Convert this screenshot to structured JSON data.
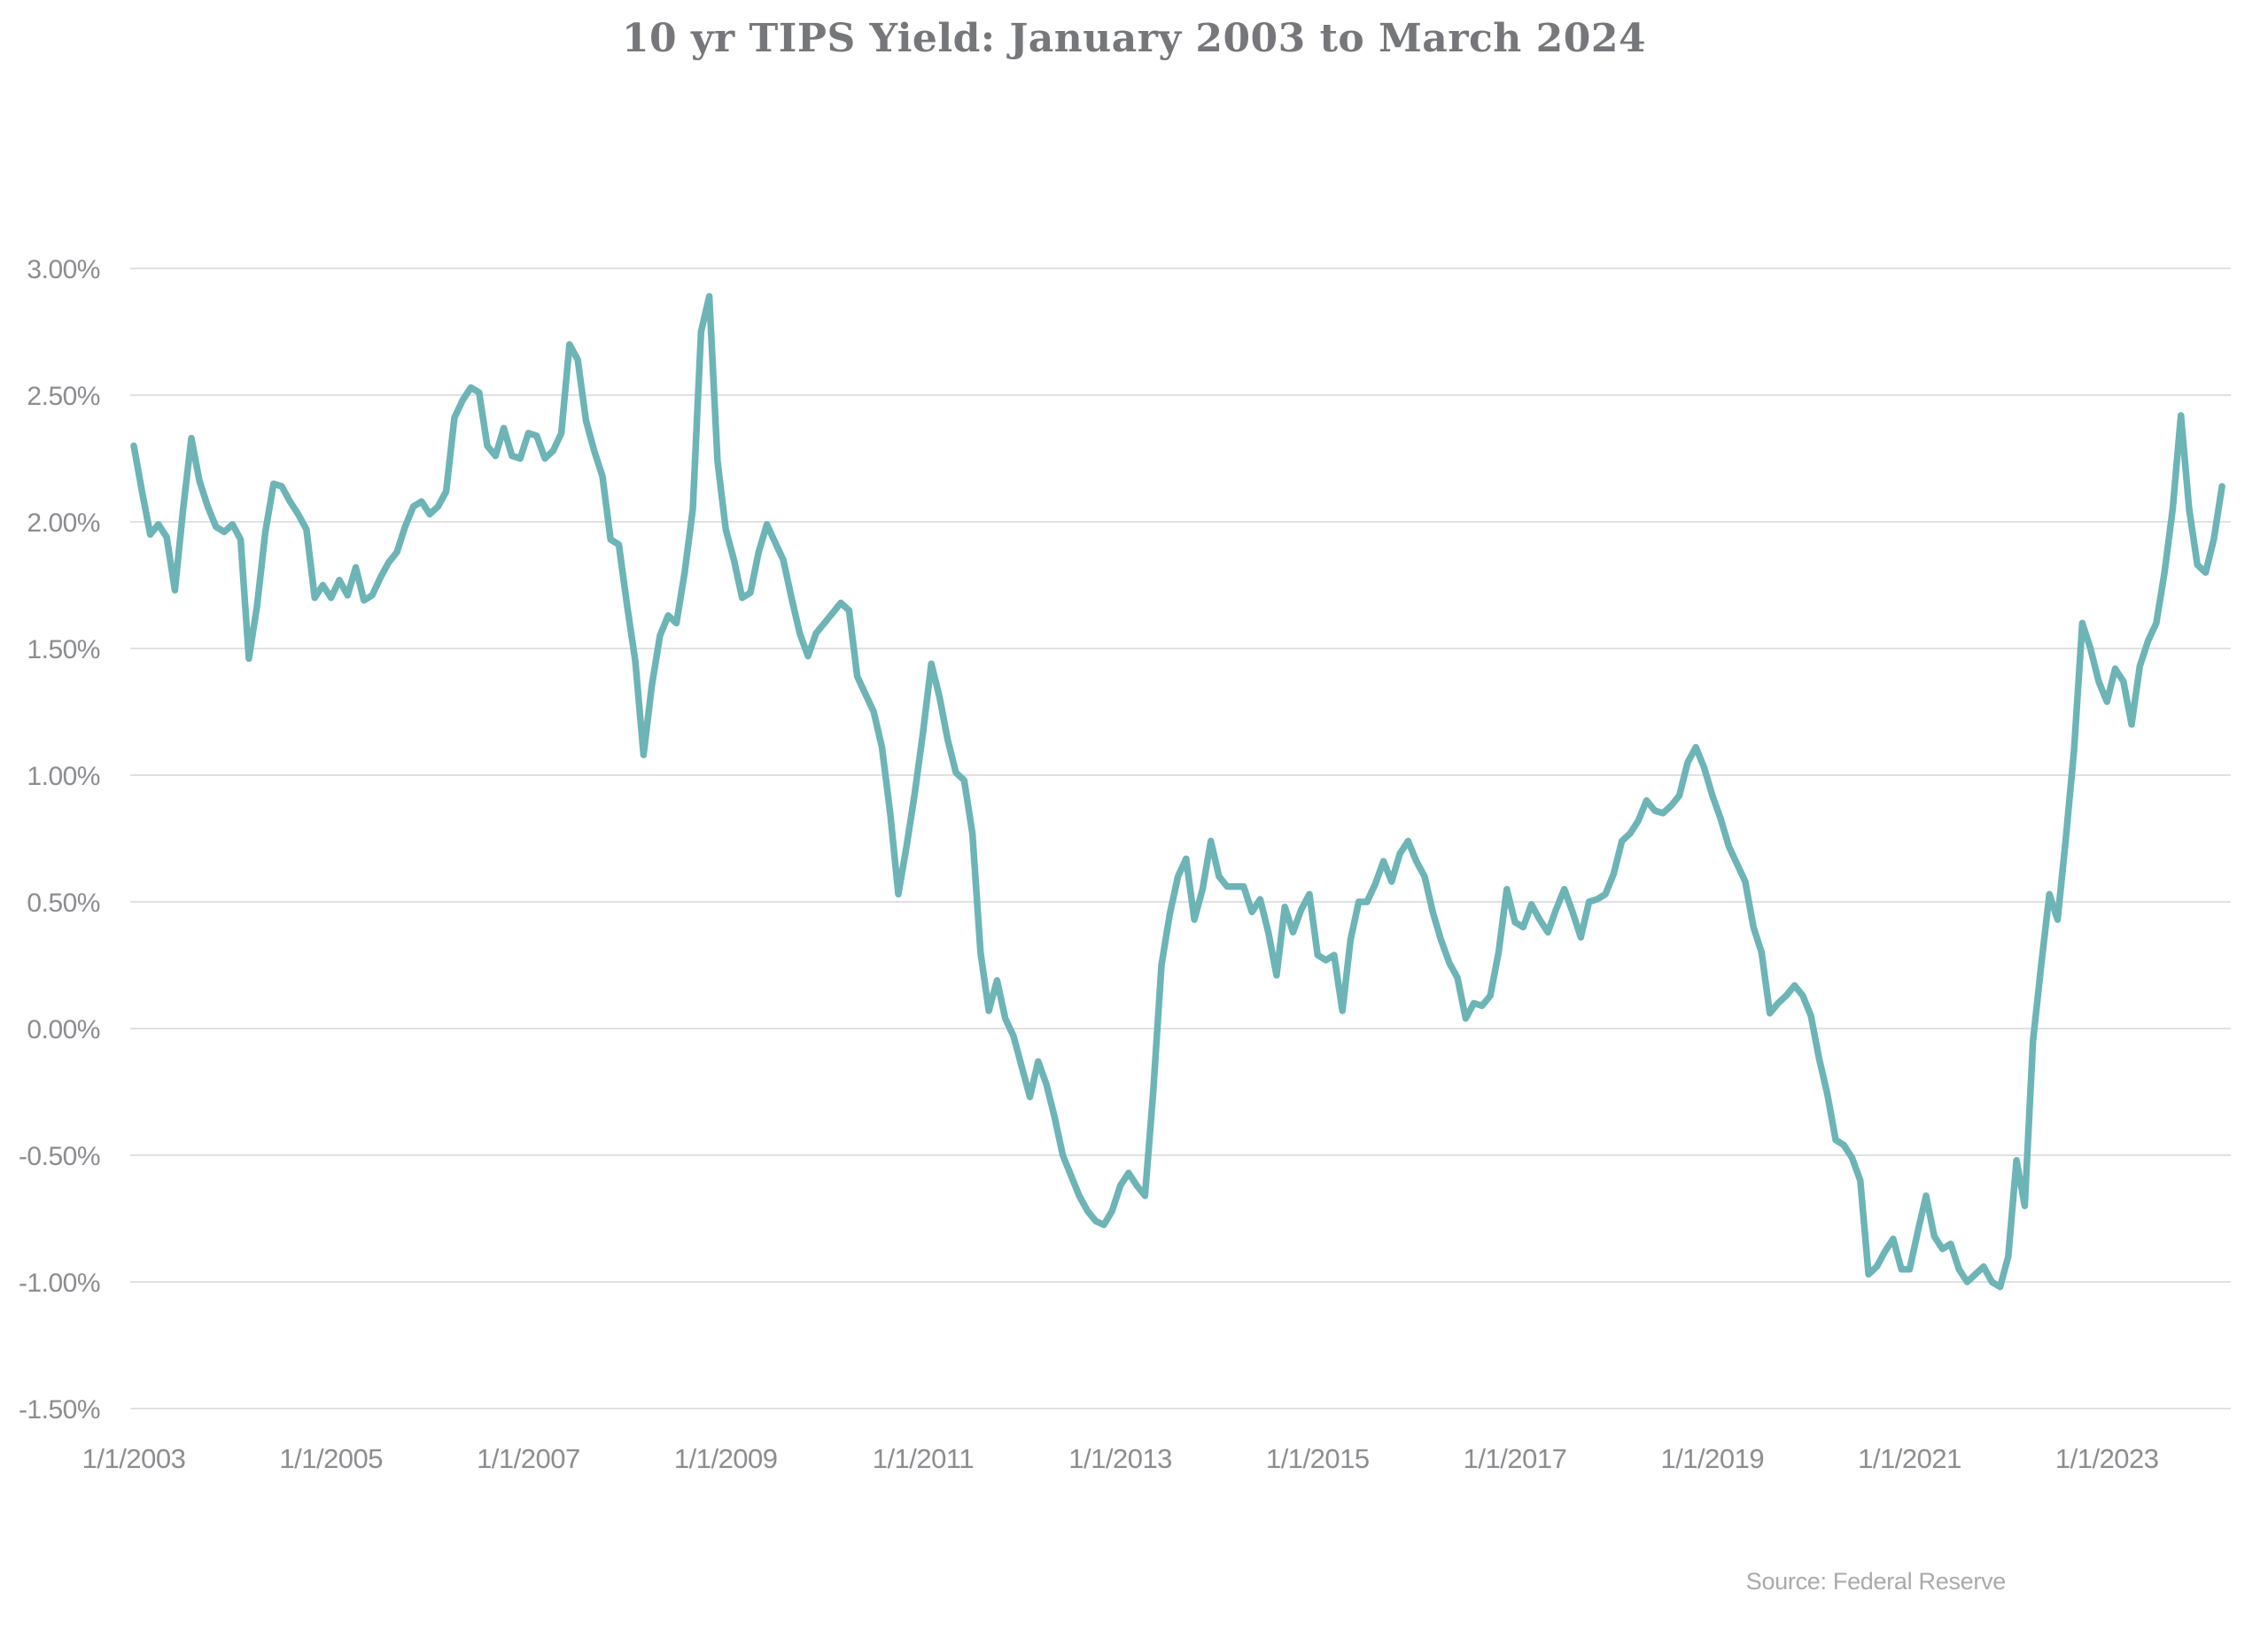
{
  "title": "10 yr TIPS Yield: January 2003 to March 2024",
  "source_note": "Source: Federal Reserve",
  "chart_data": {
    "type": "line",
    "title": "10 yr TIPS Yield: January 2003 to March 2024",
    "xlabel": "",
    "ylabel": "",
    "ylim": [
      -1.5,
      3.0
    ],
    "grid": true,
    "legend": false,
    "line_color": "#6db4b6",
    "grid_color": "#e1e1e2",
    "axis_label_color": "#8b8d90",
    "title_color": "#76777a",
    "x_tick_labels": [
      "1/1/2003",
      "1/1/2005",
      "1/1/2007",
      "1/1/2009",
      "1/1/2011",
      "1/1/2013",
      "1/1/2015",
      "1/1/2017",
      "1/1/2019",
      "1/1/2021",
      "1/1/2023"
    ],
    "y_tick_labels": [
      "3.00%",
      "2.50%",
      "2.00%",
      "1.50%",
      "1.00%",
      "0.50%",
      "0.00%",
      "-0.50%",
      "-1.00%",
      "-1.50%"
    ],
    "y_tick_values": [
      3.0,
      2.5,
      2.0,
      1.5,
      1.0,
      0.5,
      0.0,
      -0.5,
      -1.0,
      -1.5
    ],
    "series": [
      {
        "name": "10 yr TIPS Yield",
        "start": "2003-01",
        "end": "2024-03",
        "frequency": "monthly",
        "unit": "percent",
        "values": [
          2.3,
          2.12,
          1.95,
          1.99,
          1.94,
          1.73,
          2.05,
          2.33,
          2.16,
          2.06,
          1.98,
          1.96,
          1.99,
          1.93,
          1.46,
          1.67,
          1.96,
          2.15,
          2.14,
          2.08,
          2.03,
          1.97,
          1.7,
          1.75,
          1.7,
          1.77,
          1.71,
          1.82,
          1.69,
          1.71,
          1.78,
          1.84,
          1.88,
          1.98,
          2.06,
          2.08,
          2.03,
          2.06,
          2.12,
          2.41,
          2.48,
          2.53,
          2.51,
          2.3,
          2.26,
          2.37,
          2.26,
          2.25,
          2.35,
          2.34,
          2.25,
          2.28,
          2.35,
          2.7,
          2.64,
          2.4,
          2.28,
          2.18,
          1.93,
          1.91,
          1.67,
          1.45,
          1.08,
          1.35,
          1.55,
          1.63,
          1.6,
          1.8,
          2.05,
          2.75,
          2.89,
          2.24,
          1.97,
          1.85,
          1.7,
          1.72,
          1.88,
          1.99,
          1.92,
          1.85,
          1.7,
          1.56,
          1.47,
          1.56,
          1.6,
          1.64,
          1.68,
          1.65,
          1.39,
          1.32,
          1.25,
          1.11,
          0.85,
          0.53,
          0.72,
          0.93,
          1.17,
          1.44,
          1.31,
          1.14,
          1.01,
          0.98,
          0.77,
          0.3,
          0.07,
          0.19,
          0.04,
          -0.03,
          -0.15,
          -0.27,
          -0.13,
          -0.22,
          -0.35,
          -0.5,
          -0.58,
          -0.66,
          -0.72,
          -0.76,
          -0.775,
          -0.72,
          -0.62,
          -0.57,
          -0.62,
          -0.66,
          -0.25,
          0.25,
          0.45,
          0.6,
          0.67,
          0.43,
          0.55,
          0.74,
          0.6,
          0.56,
          0.56,
          0.56,
          0.46,
          0.51,
          0.38,
          0.21,
          0.48,
          0.38,
          0.47,
          0.53,
          0.29,
          0.27,
          0.29,
          0.07,
          0.35,
          0.5,
          0.5,
          0.57,
          0.66,
          0.58,
          0.69,
          0.74,
          0.66,
          0.6,
          0.46,
          0.35,
          0.26,
          0.2,
          0.04,
          0.1,
          0.09,
          0.13,
          0.3,
          0.55,
          0.42,
          0.4,
          0.49,
          0.43,
          0.38,
          0.47,
          0.55,
          0.46,
          0.36,
          0.5,
          0.51,
          0.53,
          0.61,
          0.74,
          0.77,
          0.82,
          0.9,
          0.86,
          0.85,
          0.88,
          0.92,
          1.05,
          1.11,
          1.03,
          0.92,
          0.83,
          0.72,
          0.65,
          0.58,
          0.4,
          0.3,
          0.06,
          0.1,
          0.13,
          0.17,
          0.13,
          0.05,
          -0.12,
          -0.26,
          -0.44,
          -0.46,
          -0.51,
          -0.6,
          -0.97,
          -0.94,
          -0.88,
          -0.83,
          -0.95,
          -0.95,
          -0.8,
          -0.66,
          -0.82,
          -0.87,
          -0.85,
          -0.95,
          -1.0,
          -0.97,
          -0.94,
          -1.0,
          -1.02,
          -0.9,
          -0.52,
          -0.7,
          -0.05,
          0.25,
          0.53,
          0.43,
          0.75,
          1.1,
          1.6,
          1.5,
          1.37,
          1.29,
          1.42,
          1.37,
          1.2,
          1.43,
          1.53,
          1.6,
          1.8,
          2.05,
          2.42,
          2.05,
          1.83,
          1.8,
          1.93,
          2.14
        ]
      }
    ]
  }
}
